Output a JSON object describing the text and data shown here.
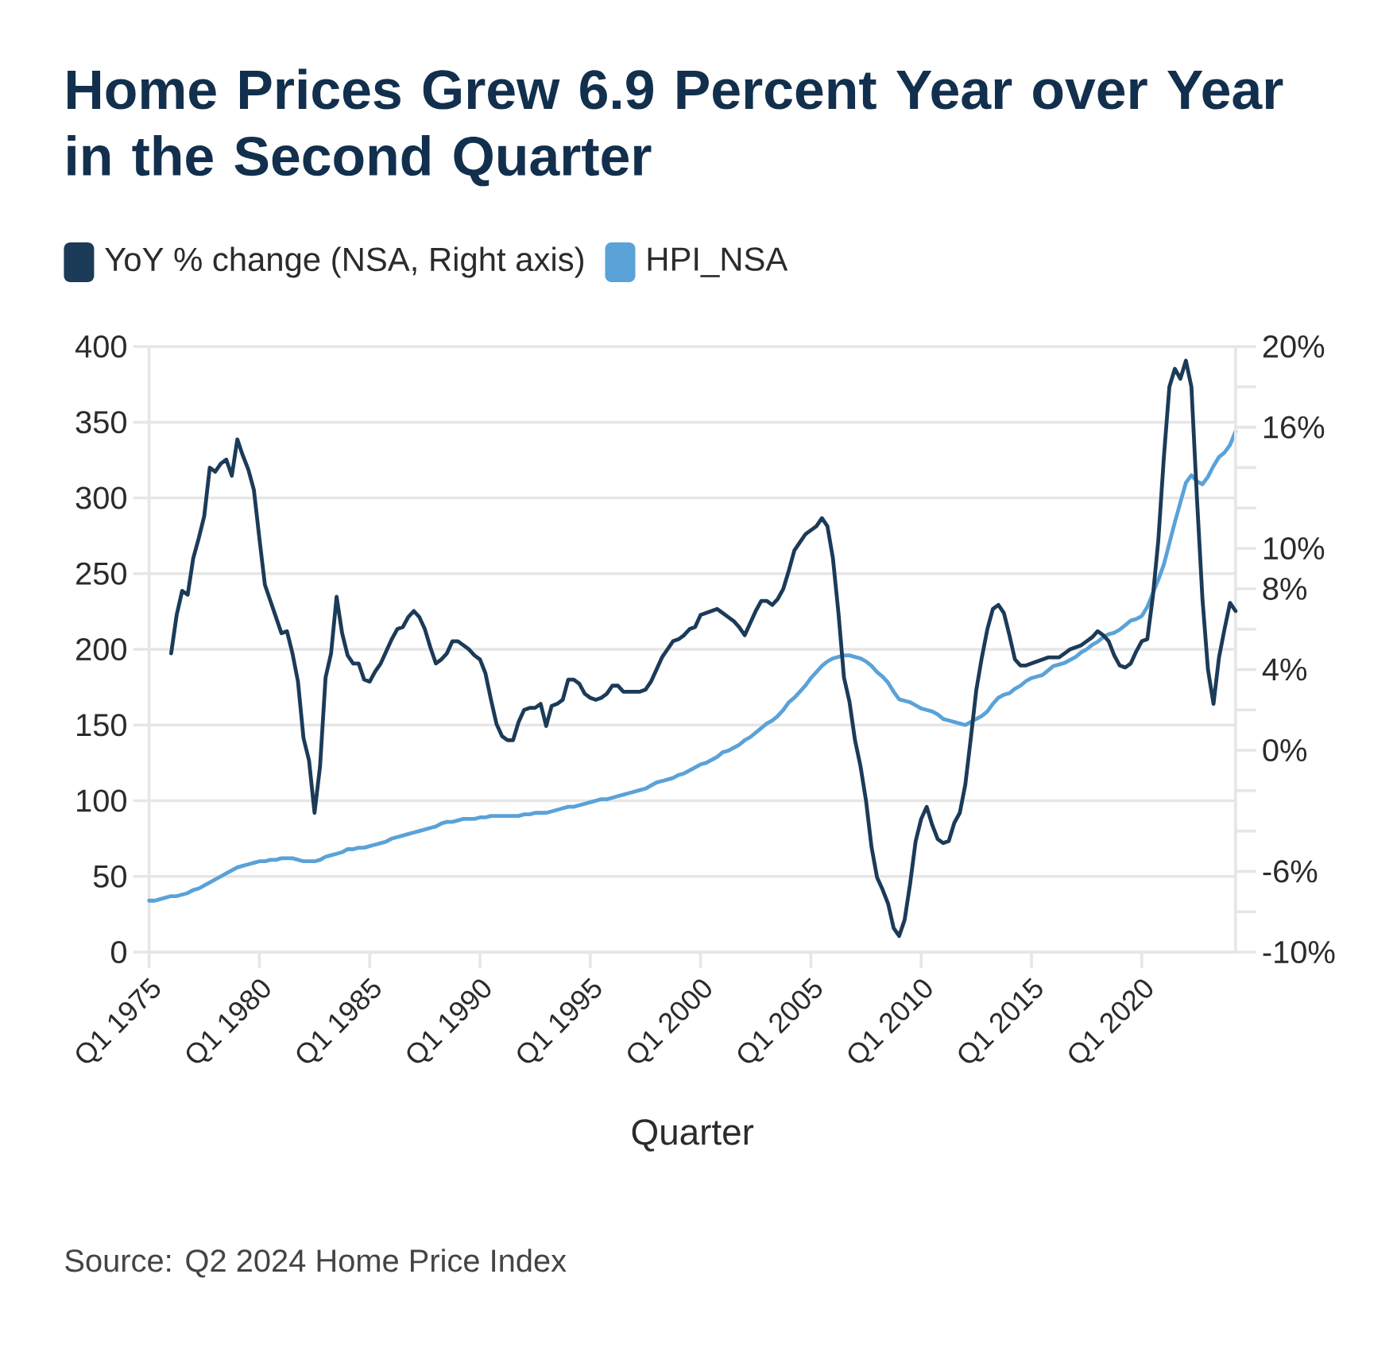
{
  "chart_data": {
    "type": "line",
    "title": "Home Prices Grew 6.9 Percent Year over Year in the Second Quarter",
    "xlabel": "Quarter",
    "annotations": [
      "Source: Q2 2024 Home Price Index"
    ],
    "categories": [
      "Q1 1975",
      null,
      null,
      null,
      null,
      null,
      null,
      null,
      null,
      null,
      null,
      null,
      null,
      null,
      null,
      null,
      null,
      null,
      null,
      null,
      "Q1 1980",
      null,
      null,
      null,
      null,
      null,
      null,
      null,
      null,
      null,
      null,
      null,
      null,
      null,
      null,
      null,
      null,
      null,
      null,
      null,
      "Q1 1985",
      null,
      null,
      null,
      null,
      null,
      null,
      null,
      null,
      null,
      null,
      null,
      null,
      null,
      null,
      null,
      null,
      null,
      null,
      null,
      "Q1 1990",
      null,
      null,
      null,
      null,
      null,
      null,
      null,
      null,
      null,
      null,
      null,
      null,
      null,
      null,
      null,
      null,
      null,
      null,
      null,
      "Q1 1995",
      null,
      null,
      null,
      null,
      null,
      null,
      null,
      null,
      null,
      null,
      null,
      null,
      null,
      null,
      null,
      null,
      null,
      null,
      null,
      "Q1 2000",
      null,
      null,
      null,
      null,
      null,
      null,
      null,
      null,
      null,
      null,
      null,
      null,
      null,
      null,
      null,
      null,
      null,
      null,
      null,
      "Q1 2005",
      null,
      null,
      null,
      null,
      null,
      null,
      null,
      null,
      null,
      null,
      null,
      null,
      null,
      null,
      null,
      null,
      null,
      null,
      null,
      "Q1 2010",
      null,
      null,
      null,
      null,
      null,
      null,
      null,
      null,
      null,
      null,
      null,
      null,
      null,
      null,
      null,
      null,
      null,
      null,
      null,
      "Q1 2015",
      null,
      null,
      null,
      null,
      null,
      null,
      null,
      null,
      null,
      null,
      null,
      null,
      null,
      null,
      null,
      null,
      null,
      null,
      null,
      "Q1 2020",
      null,
      null,
      null,
      null,
      null,
      null,
      null,
      null,
      null,
      null,
      null,
      null,
      null,
      null,
      null,
      null,
      null
    ],
    "ylim": [
      0,
      400
    ],
    "yticks": [
      0,
      50,
      100,
      150,
      200,
      250,
      300,
      350,
      400
    ],
    "y2lim": [
      -10,
      20
    ],
    "y2ticks": [
      {
        "value": -10,
        "label": "-10%"
      },
      {
        "value": -8,
        "label": null
      },
      {
        "value": -6,
        "label": "-6%"
      },
      {
        "value": -4,
        "label": null
      },
      {
        "value": -2,
        "label": null
      },
      {
        "value": 0,
        "label": "0%"
      },
      {
        "value": 2,
        "label": null
      },
      {
        "value": 4,
        "label": "4%"
      },
      {
        "value": 6,
        "label": null
      },
      {
        "value": 8,
        "label": "8%"
      },
      {
        "value": 10,
        "label": "10%"
      },
      {
        "value": 12,
        "label": null
      },
      {
        "value": 14,
        "label": null
      },
      {
        "value": 16,
        "label": "16%"
      },
      {
        "value": 18,
        "label": null
      },
      {
        "value": 20,
        "label": "20%"
      }
    ],
    "grid": "y",
    "legend": "top left",
    "series": [
      {
        "name": "YoY % change (NSA, Right axis)",
        "color": "#1b3b58",
        "axis": "y2",
        "values": [
          null,
          null,
          null,
          null,
          4.8,
          6.7,
          7.9,
          7.7,
          9.5,
          10.5,
          11.6,
          14.0,
          13.8,
          14.2,
          14.4,
          13.6,
          15.4,
          14.6,
          13.9,
          12.9,
          10.5,
          8.2,
          7.4,
          6.6,
          5.8,
          5.9,
          4.8,
          3.4,
          0.6,
          -0.5,
          -3.1,
          -0.8,
          3.6,
          4.8,
          7.6,
          5.8,
          4.7,
          4.3,
          4.3,
          3.5,
          3.4,
          3.9,
          4.3,
          4.9,
          5.5,
          6.0,
          6.1,
          6.6,
          6.9,
          6.6,
          6.0,
          5.1,
          4.3,
          4.5,
          4.8,
          5.4,
          5.4,
          5.2,
          5.0,
          4.7,
          4.5,
          3.8,
          2.5,
          1.3,
          0.7,
          0.5,
          0.5,
          1.4,
          2.0,
          2.1,
          2.1,
          2.3,
          1.2,
          2.2,
          2.3,
          2.5,
          3.5,
          3.5,
          3.3,
          2.8,
          2.6,
          2.5,
          2.6,
          2.8,
          3.2,
          3.2,
          2.9,
          2.9,
          2.9,
          2.9,
          3.0,
          3.4,
          4.0,
          4.6,
          5.0,
          5.4,
          5.5,
          5.7,
          6.0,
          6.1,
          6.7,
          6.8,
          6.9,
          7.0,
          6.8,
          6.6,
          6.4,
          6.1,
          5.7,
          6.3,
          6.9,
          7.4,
          7.4,
          7.2,
          7.5,
          8.0,
          8.9,
          9.9,
          10.3,
          10.7,
          10.9,
          11.1,
          11.5,
          11.1,
          9.5,
          6.8,
          3.6,
          2.4,
          0.5,
          -0.8,
          -2.5,
          -4.8,
          -6.3,
          -6.9,
          -7.6,
          -8.8,
          -9.2,
          -8.4,
          -6.6,
          -4.5,
          -3.4,
          -2.8,
          -3.7,
          -4.4,
          -4.6,
          -4.5,
          -3.6,
          -3.1,
          -1.7,
          0.6,
          3.0,
          4.6,
          6.0,
          7.0,
          7.2,
          6.8,
          5.7,
          4.5,
          4.2,
          4.2,
          4.3,
          4.4,
          4.5,
          4.6,
          4.6,
          4.6,
          4.8,
          5.0,
          5.1,
          5.2,
          5.4,
          5.6,
          5.9,
          5.7,
          5.4,
          4.7,
          4.2,
          4.1,
          4.3,
          4.9,
          5.4,
          5.5,
          7.6,
          10.4,
          14.5,
          18.0,
          18.9,
          18.4,
          19.3,
          18.0,
          12.5,
          7.5,
          4.0,
          2.3,
          4.6,
          6.0,
          7.3,
          6.9
        ]
      },
      {
        "name": "HPI_NSA",
        "color": "#5aa2d8",
        "values": [
          34,
          34,
          35,
          36,
          37,
          37,
          38,
          39,
          41,
          42,
          44,
          46,
          48,
          50,
          52,
          54,
          56,
          57,
          58,
          59,
          60,
          60,
          61,
          61,
          62,
          62,
          62,
          61,
          60,
          60,
          60,
          61,
          63,
          64,
          65,
          66,
          68,
          68,
          69,
          69,
          70,
          71,
          72,
          73,
          75,
          76,
          77,
          78,
          79,
          80,
          81,
          82,
          83,
          85,
          86,
          86,
          87,
          88,
          88,
          88,
          89,
          89,
          90,
          90,
          90,
          90,
          90,
          90,
          91,
          91,
          92,
          92,
          92,
          93,
          94,
          95,
          96,
          96,
          97,
          98,
          99,
          100,
          101,
          101,
          102,
          103,
          104,
          105,
          106,
          107,
          108,
          110,
          112,
          113,
          114,
          115,
          117,
          118,
          120,
          122,
          124,
          125,
          127,
          129,
          132,
          133,
          135,
          137,
          140,
          142,
          145,
          148,
          151,
          153,
          156,
          160,
          165,
          168,
          172,
          176,
          181,
          185,
          189,
          192,
          194,
          195,
          196,
          196,
          195,
          194,
          192,
          189,
          185,
          182,
          178,
          172,
          167,
          166,
          165,
          163,
          161,
          160,
          159,
          157,
          154,
          153,
          152,
          151,
          150,
          152,
          154,
          156,
          159,
          164,
          168,
          170,
          171,
          174,
          176,
          179,
          181,
          182,
          183,
          186,
          189,
          190,
          191,
          193,
          195,
          198,
          200,
          203,
          205,
          208,
          210,
          211,
          213,
          216,
          219,
          220,
          222,
          228,
          237,
          246,
          256,
          270,
          284,
          297,
          310,
          315,
          311,
          309,
          314,
          321,
          327,
          330,
          335,
          344
        ]
      }
    ]
  }
}
